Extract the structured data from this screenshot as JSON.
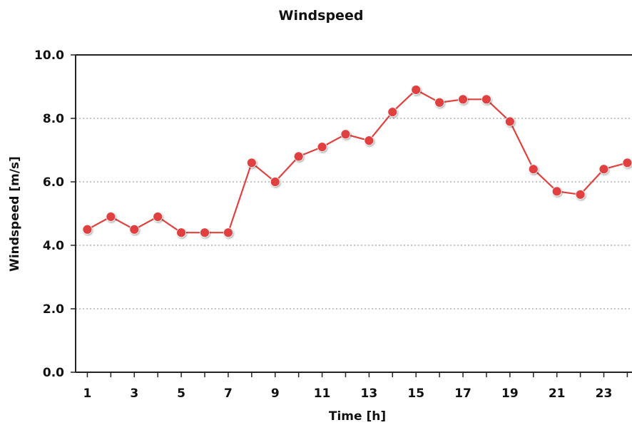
{
  "chart_data": {
    "type": "line",
    "title": "Windspeed",
    "xlabel": "Time [h]",
    "ylabel": "Windspeed [m/s]",
    "x": [
      1,
      2,
      3,
      4,
      5,
      6,
      7,
      8,
      9,
      10,
      11,
      12,
      13,
      14,
      15,
      16,
      17,
      18,
      19,
      20,
      21,
      22,
      23,
      24
    ],
    "series": [
      {
        "values": [
          4.5,
          4.9,
          4.5,
          4.9,
          4.4,
          4.4,
          4.4,
          6.6,
          6.0,
          6.8,
          7.1,
          7.5,
          7.3,
          8.2,
          8.9,
          8.5,
          8.6,
          8.6,
          7.9,
          6.4,
          5.7,
          5.6,
          6.4,
          6.6
        ],
        "color": "#e0413f"
      }
    ],
    "xticks": [
      "1",
      "3",
      "5",
      "7",
      "9",
      "11",
      "13",
      "15",
      "17",
      "19",
      "21",
      "23"
    ],
    "yticks": [
      "0.0",
      "2.0",
      "4.0",
      "6.0",
      "8.0",
      "10.0"
    ],
    "ylim": [
      0,
      10
    ],
    "grid": "horizontal-dotted",
    "legend": "none"
  }
}
